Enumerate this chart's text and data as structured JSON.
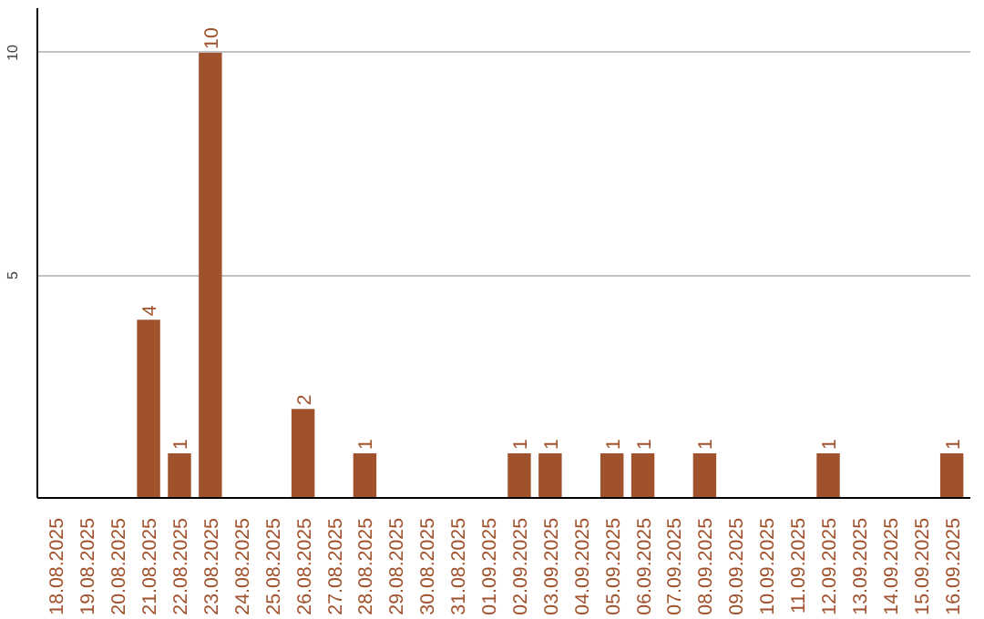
{
  "chart_data": {
    "type": "bar",
    "categories": [
      "18.08.2025",
      "19.08.2025",
      "20.08.2025",
      "21.08.2025",
      "22.08.2025",
      "23.08.2025",
      "24.08.2025",
      "25.08.2025",
      "26.08.2025",
      "27.08.2025",
      "28.08.2025",
      "29.08.2025",
      "30.08.2025",
      "31.08.2025",
      "01.09.2025",
      "02.09.2025",
      "03.09.2025",
      "04.09.2025",
      "05.09.2025",
      "06.09.2025",
      "07.09.2025",
      "08.09.2025",
      "09.09.2025",
      "10.09.2025",
      "11.09.2025",
      "12.09.2025",
      "13.09.2025",
      "14.09.2025",
      "15.09.2025",
      "16.09.2025"
    ],
    "values": [
      0,
      0,
      0,
      4,
      1,
      10,
      0,
      0,
      2,
      0,
      1,
      0,
      0,
      0,
      0,
      1,
      1,
      0,
      1,
      1,
      0,
      1,
      0,
      0,
      0,
      1,
      0,
      0,
      0,
      1
    ],
    "value_labels": [
      null,
      null,
      null,
      "4",
      "1",
      "10",
      null,
      null,
      "2",
      null,
      "1",
      null,
      null,
      null,
      null,
      "1",
      "1",
      null,
      "1",
      "1",
      null,
      "1",
      null,
      null,
      null,
      "1",
      null,
      null,
      null,
      "1"
    ],
    "color": "#a0522d",
    "ylim": [
      0,
      11
    ],
    "yticks": [
      5,
      10
    ],
    "grid": "y"
  }
}
